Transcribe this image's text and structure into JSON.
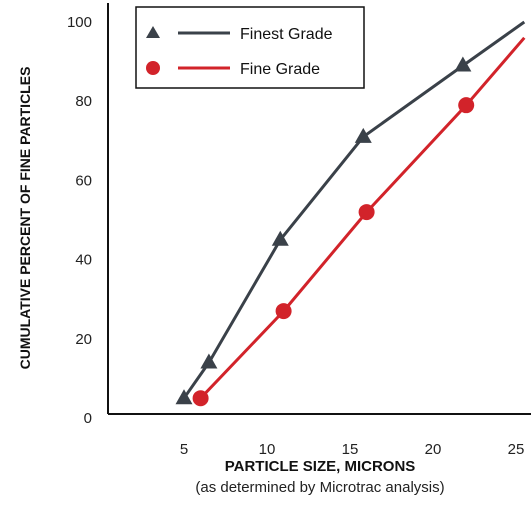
{
  "chart_data": {
    "type": "line",
    "xlabel": "PARTICLE SIZE, MICRONS",
    "xlabel_note": "(as determined by Microtrac analysis)",
    "ylabel": "CUMULATIVE PERCENT OF FINE PARTICLES",
    "xlim": [
      0,
      25
    ],
    "ylim": [
      0,
      100
    ],
    "x_ticks": [
      5,
      10,
      15,
      20,
      25
    ],
    "y_ticks": [
      0,
      20,
      40,
      60,
      80,
      100
    ],
    "grid": false,
    "legend_position": "top-left",
    "series": [
      {
        "name": "Finest Grade",
        "marker": "triangle",
        "color": "#3a4149",
        "x": [
          5,
          6.5,
          10.8,
          15.8,
          21.8,
          25.5
        ],
        "y": [
          5,
          14,
          45,
          71,
          89,
          100
        ]
      },
      {
        "name": "Fine Grade",
        "marker": "circle",
        "color": "#d2232a",
        "x": [
          6,
          11,
          16,
          22,
          25.5
        ],
        "y": [
          5,
          27,
          52,
          79,
          96
        ]
      }
    ]
  }
}
